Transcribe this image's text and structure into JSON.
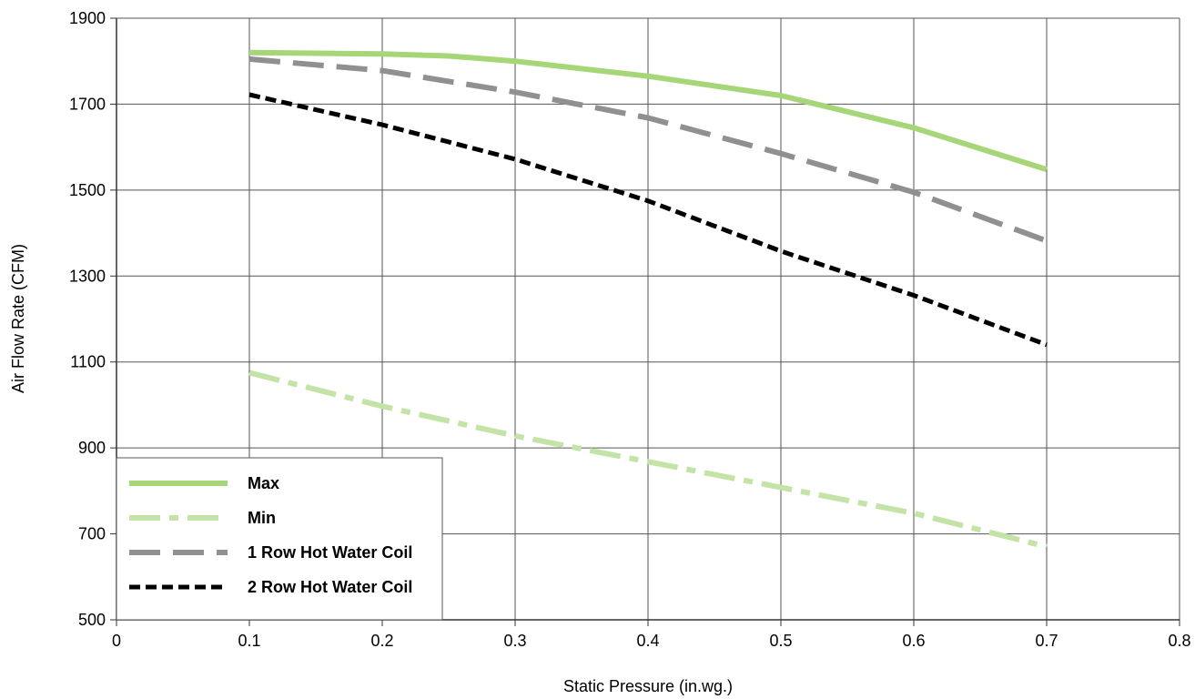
{
  "chart_data": {
    "type": "line",
    "title": "",
    "xlabel": "Static Pressure (in.wg.)",
    "ylabel": "Air Flow Rate (CFM)",
    "xlim": [
      0,
      0.8
    ],
    "ylim": [
      500,
      1900
    ],
    "x_ticks": [
      0,
      0.1,
      0.2,
      0.3,
      0.4,
      0.5,
      0.6,
      0.7,
      0.8
    ],
    "x_tick_labels": [
      "0",
      "0.1",
      "0.2",
      "0.3",
      "0.4",
      "0.5",
      "0.6",
      "0.7",
      "0.8"
    ],
    "y_ticks": [
      500,
      700,
      900,
      1100,
      1300,
      1500,
      1700,
      1900
    ],
    "y_tick_labels": [
      "500",
      "700",
      "900",
      "1100",
      "1300",
      "1500",
      "1700",
      "1900"
    ],
    "grid": true,
    "legend_position": "bottom-left",
    "series": [
      {
        "name": "Max",
        "color": "#a6d678",
        "style": "solid",
        "x": [
          0.1,
          0.2,
          0.25,
          0.3,
          0.4,
          0.5,
          0.6,
          0.7
        ],
        "y": [
          1820,
          1817,
          1812,
          1800,
          1765,
          1720,
          1645,
          1548
        ]
      },
      {
        "name": "Min",
        "color": "#c4e3a6",
        "style": "dashdot",
        "x": [
          0.1,
          0.2,
          0.3,
          0.4,
          0.5,
          0.6,
          0.7
        ],
        "y": [
          1075,
          997,
          928,
          868,
          808,
          748,
          670
        ]
      },
      {
        "name": "1 Row Hot Water Coil",
        "color": "#8f9092",
        "style": "longdash",
        "x": [
          0.1,
          0.2,
          0.3,
          0.4,
          0.5,
          0.6,
          0.7
        ],
        "y": [
          1805,
          1778,
          1728,
          1668,
          1585,
          1495,
          1382
        ]
      },
      {
        "name": "2 Row Hot Water Coil",
        "color": "#000000",
        "style": "dashed",
        "x": [
          0.1,
          0.2,
          0.3,
          0.4,
          0.5,
          0.6,
          0.7
        ],
        "y": [
          1722,
          1652,
          1572,
          1475,
          1358,
          1255,
          1140
        ]
      }
    ]
  }
}
